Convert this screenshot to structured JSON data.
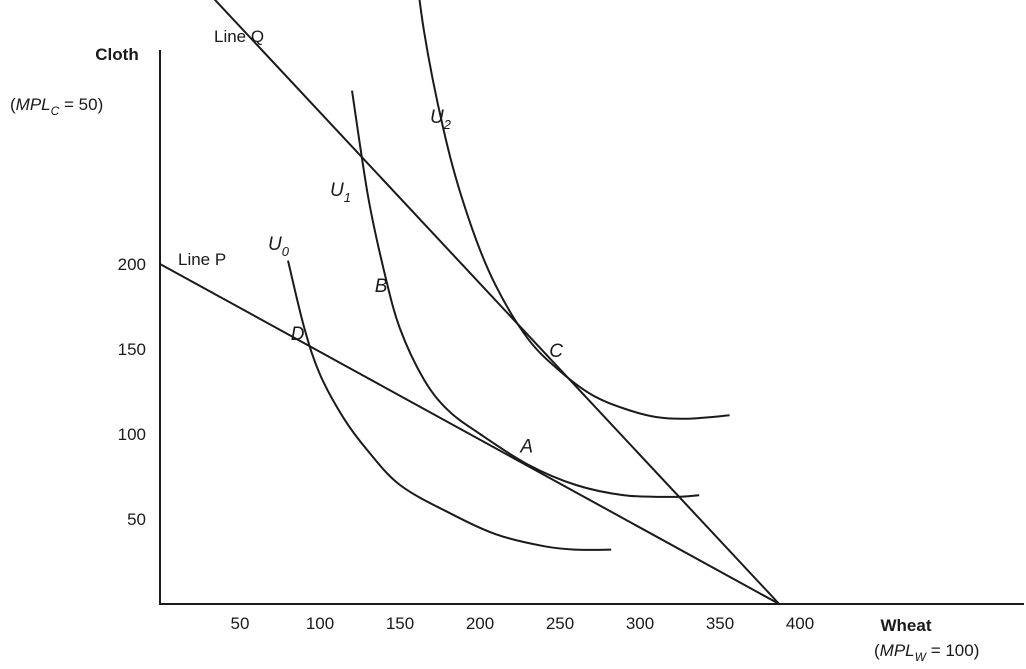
{
  "chart_data": {
    "type": "line",
    "xlabel": "Wheat",
    "ylabel": "Cloth",
    "xlabel_note": {
      "prefix": "(",
      "var": "MPL",
      "sub": "W",
      "suffix": " = 100)"
    },
    "ylabel_note": {
      "prefix": "(",
      "var": "MPL",
      "sub": "C",
      "suffix": " = 50)"
    },
    "xlim": [
      0,
      500
    ],
    "ylim": [
      0,
      400
    ],
    "x_ticks": [
      50,
      100,
      150,
      200,
      250,
      300,
      350,
      400
    ],
    "y_ticks": [
      50,
      100,
      150,
      200
    ],
    "grid": false,
    "lines": [
      {
        "name": "Line P",
        "x": [
          0,
          387
        ],
        "y": [
          200,
          0
        ]
      },
      {
        "name": "Line Q",
        "x": [
          0,
          387
        ],
        "y": [
          390,
          0
        ]
      }
    ],
    "curves": [
      {
        "name": "U",
        "sub": "0",
        "x": [
          80,
          90,
          100,
          115,
          130,
          150,
          180,
          210,
          240,
          260,
          282
        ],
        "y": [
          202,
          163,
          135,
          109,
          90,
          70,
          54,
          41,
          34,
          32,
          32
        ]
      },
      {
        "name": "U",
        "sub": "1",
        "x": [
          120,
          130,
          140,
          150,
          165,
          180,
          200,
          230,
          260,
          290,
          320,
          337
        ],
        "y": [
          302,
          240,
          196,
          162,
          132,
          114,
          100,
          82,
          70,
          64,
          63,
          64
        ]
      },
      {
        "name": "U",
        "sub": "2",
        "x": [
          155,
          165,
          180,
          195,
          210,
          230,
          250,
          270,
          290,
          310,
          330,
          356
        ],
        "y": [
          413,
          337,
          268,
          221,
          187,
          156,
          137,
          123,
          115,
          110,
          109,
          111
        ]
      }
    ],
    "points": [
      {
        "label": "A",
        "x": 229,
        "y": 95
      },
      {
        "label": "B",
        "x": 143,
        "y": 180
      },
      {
        "label": "C",
        "x": 237,
        "y": 150
      },
      {
        "label": "D",
        "x": 93,
        "y": 160
      }
    ]
  }
}
